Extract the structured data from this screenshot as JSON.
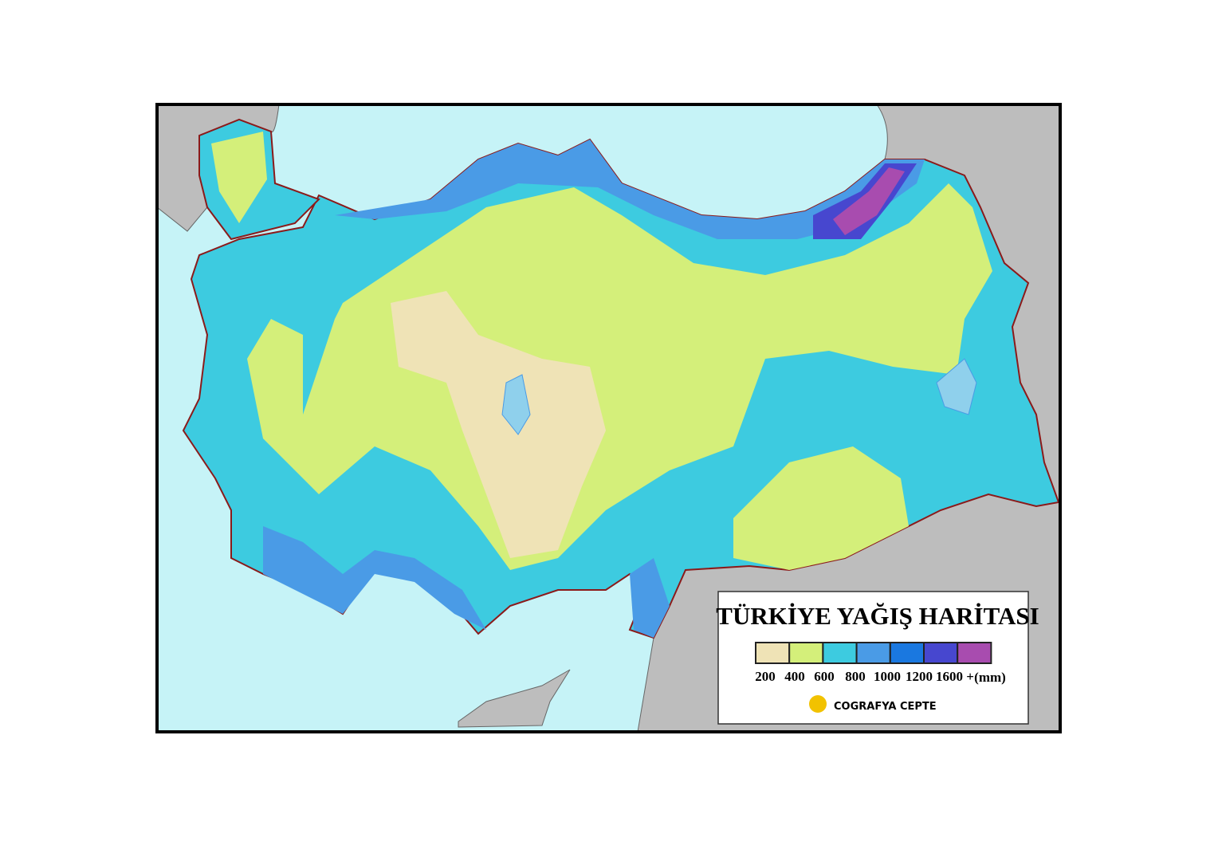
{
  "map": {
    "title": "TÜRKİYE YAĞIŞ HARİTASI",
    "legend": {
      "colors": [
        "#efe3b6",
        "#d4ef7a",
        "#3dcbe0",
        "#4a9be6",
        "#1a78e0",
        "#4747cf",
        "#a84caf"
      ],
      "labels": [
        "200",
        "400",
        "600",
        "800",
        "1000",
        "1200",
        "1600 +"
      ],
      "unit": "(mm)"
    },
    "logo": "COGRAFYA CEPTE"
  }
}
